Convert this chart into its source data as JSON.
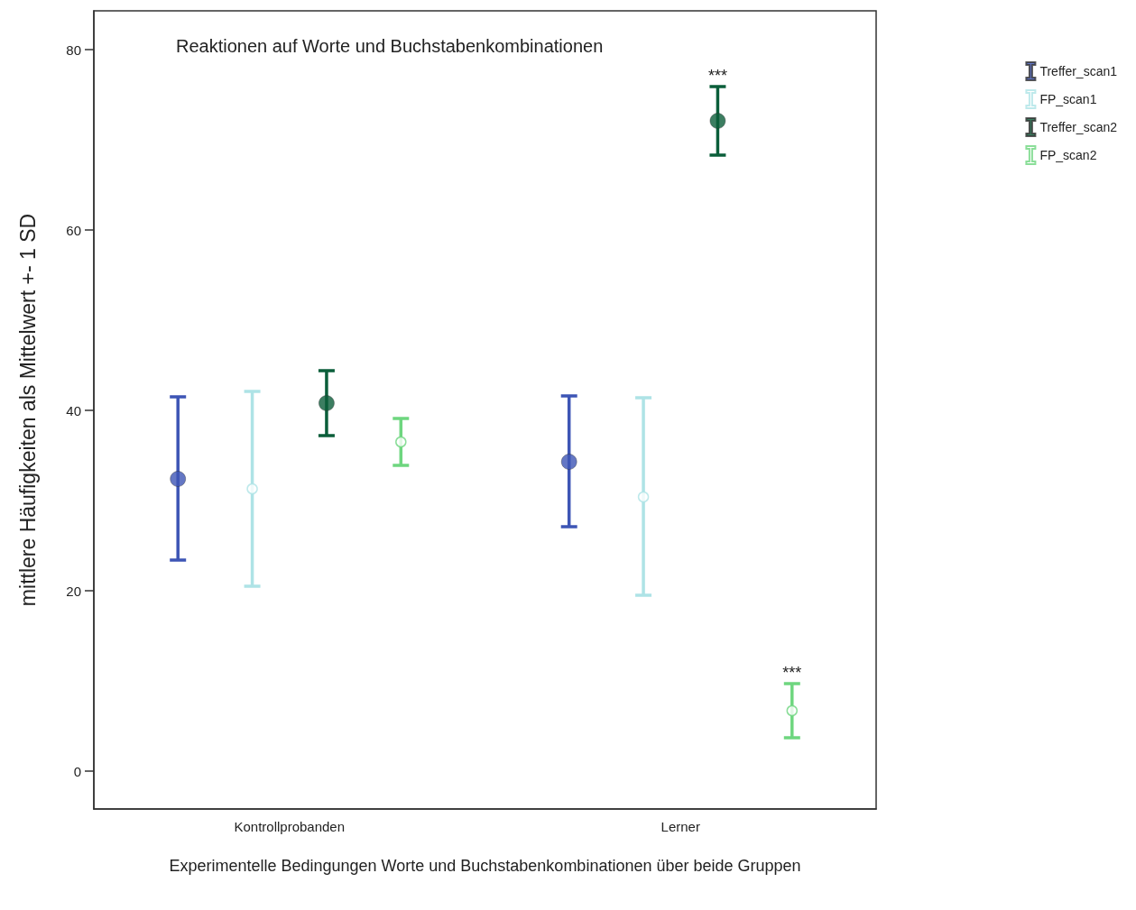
{
  "chart_data": {
    "type": "scatter",
    "title": "Reaktionen auf Worte und Buchstabenkombinationen",
    "xlabel": "Experimentelle Bedingungen Worte und Buchstabenkombinationen über beide Gruppen",
    "ylabel": "mittlere Häufigkeiten als Mittelwert +- 1 SD",
    "categories": [
      "Kontrollprobanden",
      "Lerner"
    ],
    "series": [
      {
        "name": "Treffer_scan1",
        "color": "#3d55b5",
        "values": [
          32.4,
          34.3
        ],
        "errors": [
          [
            23.4,
            41.5
          ],
          [
            27.1,
            41.6
          ]
        ]
      },
      {
        "name": "FP_scan1",
        "color": "#aee3e6",
        "values": [
          31.3,
          30.4
        ],
        "errors": [
          [
            20.5,
            42.1
          ],
          [
            19.5,
            41.4
          ]
        ]
      },
      {
        "name": "Treffer_scan2",
        "color": "#0b5e3a",
        "values": [
          40.8,
          72.1
        ],
        "errors": [
          [
            37.2,
            44.4
          ],
          [
            68.3,
            75.9
          ]
        ]
      },
      {
        "name": "FP_scan2",
        "color": "#6ed67f",
        "values": [
          36.5,
          6.7
        ],
        "errors": [
          [
            33.9,
            39.1
          ],
          [
            3.7,
            9.7
          ]
        ]
      }
    ],
    "ylim": [
      -4.2,
      84.3
    ],
    "yticks": [
      0,
      20,
      40,
      60,
      80
    ],
    "grid": false,
    "legend": "top right",
    "marker": "circle",
    "annotations": [
      "***",
      "***"
    ]
  }
}
